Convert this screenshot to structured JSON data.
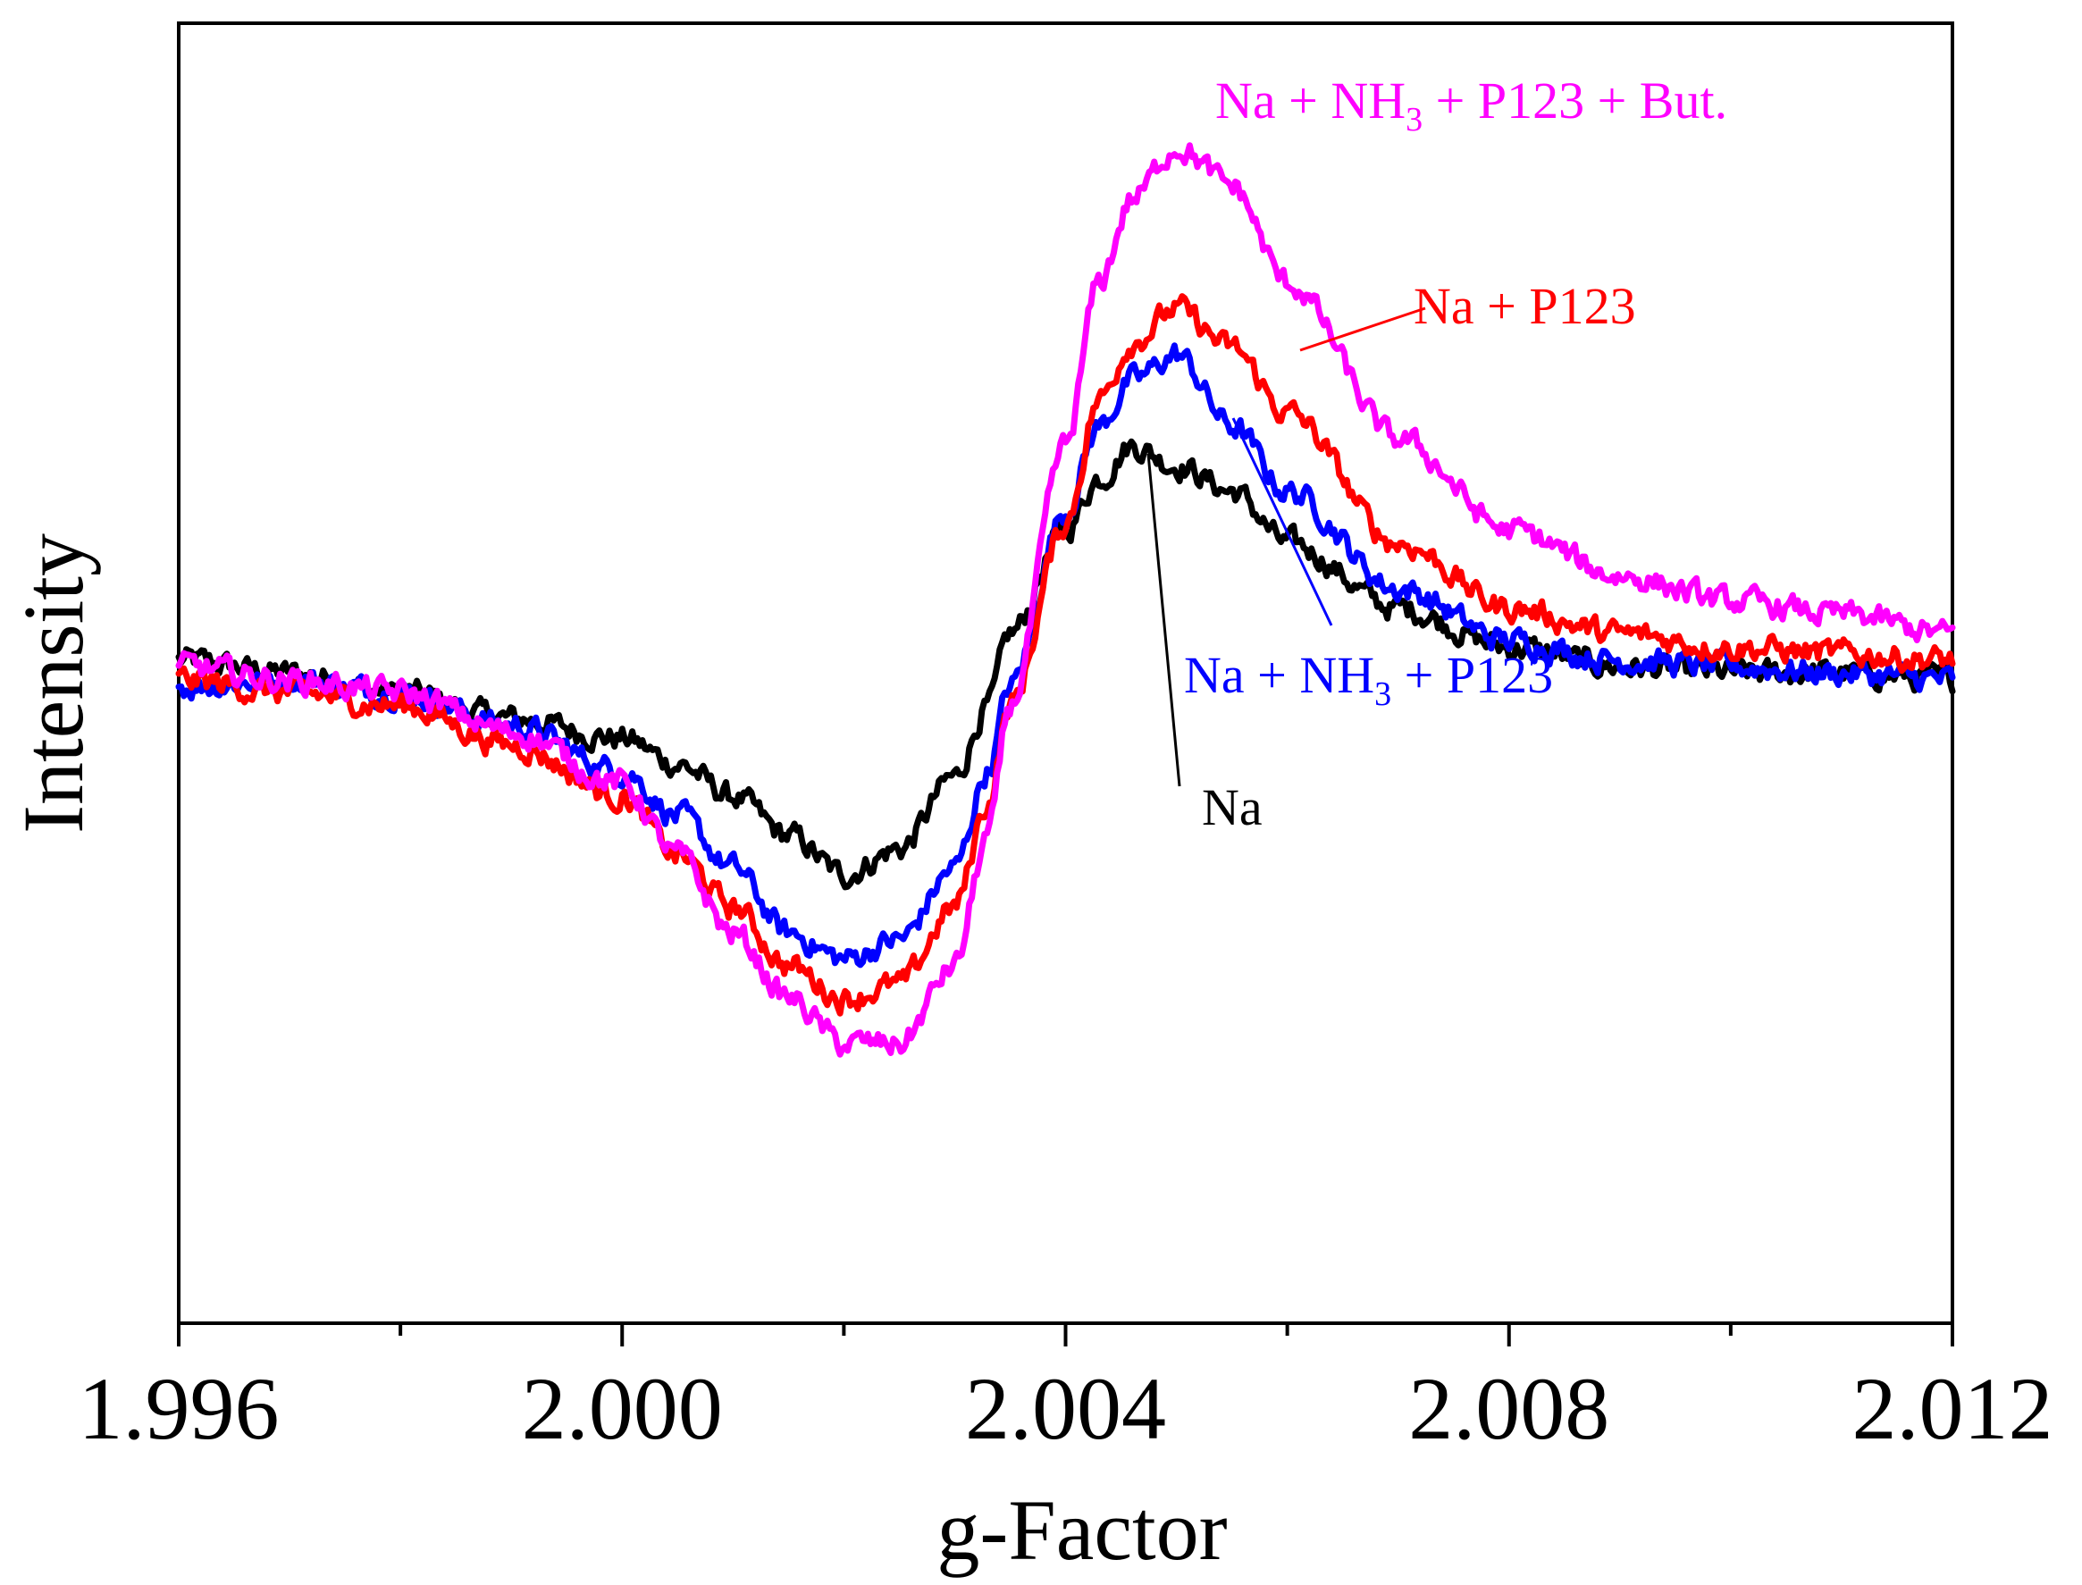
{
  "chart_data": {
    "type": "line",
    "title": "",
    "xlabel": "g-Factor",
    "ylabel": "Intensity",
    "xlim": [
      1.996,
      2.012
    ],
    "ylim": [
      -1.0,
      1.0
    ],
    "x_ticks": [
      "1.996",
      "2.000",
      "2.004",
      "2.008",
      "2.012"
    ],
    "x_tick_values": [
      1.996,
      2.0,
      2.004,
      2.008,
      2.012
    ],
    "x_minor_ticks": [
      1.998,
      2.002,
      2.006,
      2.01
    ],
    "y_ticks_shown": false,
    "grid": false,
    "legend": "direct labels",
    "series": [
      {
        "name": "Na",
        "label_parts": [
          {
            "t": "Na"
          }
        ],
        "color": "#000000",
        "x": [
          1.996,
          1.997,
          1.998,
          1.999,
          2.0,
          2.0005,
          2.001,
          2.0015,
          2.002,
          2.0025,
          2.003,
          2.0033,
          2.0035,
          2.004,
          2.0043,
          2.0046,
          2.005,
          2.0055,
          2.006,
          2.007,
          2.008,
          2.009,
          2.01,
          2.011,
          2.012
        ],
        "y": [
          0.02,
          0.0,
          -0.03,
          -0.07,
          -0.1,
          -0.14,
          -0.19,
          -0.25,
          -0.31,
          -0.27,
          -0.16,
          -0.05,
          0.06,
          0.22,
          0.3,
          0.35,
          0.32,
          0.28,
          0.2,
          0.1,
          0.04,
          0.01,
          0.0,
          0.0,
          -0.01
        ]
      },
      {
        "name": "Na + NH3 + P123",
        "label_parts": [
          {
            "t": "Na + NH"
          },
          {
            "t": "3",
            "sub": true
          },
          {
            "t": " + P123"
          }
        ],
        "color": "#0000ff",
        "x": [
          1.996,
          1.997,
          1.998,
          1.999,
          2.0,
          2.0005,
          2.001,
          2.0015,
          2.002,
          2.0025,
          2.003,
          2.0033,
          2.0035,
          2.004,
          2.0043,
          2.0046,
          2.005,
          2.0055,
          2.006,
          2.007,
          2.008,
          2.009,
          2.01,
          2.011,
          2.012
        ],
        "y": [
          -0.02,
          -0.01,
          -0.03,
          -0.08,
          -0.15,
          -0.22,
          -0.3,
          -0.4,
          -0.44,
          -0.41,
          -0.3,
          -0.15,
          -0.02,
          0.25,
          0.38,
          0.45,
          0.49,
          0.38,
          0.28,
          0.13,
          0.05,
          0.02,
          0.01,
          0.0,
          -0.01
        ]
      },
      {
        "name": "Na + P123",
        "label_parts": [
          {
            "t": "Na + P123"
          }
        ],
        "color": "#ff0000",
        "x": [
          1.996,
          1.997,
          1.998,
          1.999,
          2.0,
          2.0005,
          2.001,
          2.0015,
          2.002,
          2.0025,
          2.003,
          2.0033,
          2.0035,
          2.004,
          2.0043,
          2.0046,
          2.005,
          2.0055,
          2.006,
          2.007,
          2.008,
          2.009,
          2.01,
          2.011,
          2.012
        ],
        "y": [
          -0.01,
          -0.03,
          -0.05,
          -0.11,
          -0.19,
          -0.28,
          -0.36,
          -0.45,
          -0.5,
          -0.48,
          -0.36,
          -0.2,
          -0.05,
          0.23,
          0.42,
          0.51,
          0.56,
          0.5,
          0.4,
          0.2,
          0.1,
          0.06,
          0.04,
          0.03,
          0.02
        ]
      },
      {
        "name": "Na + NH3 + P123 + But.",
        "label_parts": [
          {
            "t": "Na + NH"
          },
          {
            "t": "3",
            "sub": true
          },
          {
            "t": " + P123 + But."
          }
        ],
        "color": "#ff00ff",
        "x": [
          1.996,
          1.997,
          1.998,
          1.999,
          2.0,
          2.0005,
          2.001,
          2.0015,
          2.002,
          2.0025,
          2.003,
          2.0033,
          2.0035,
          2.004,
          2.0043,
          2.0046,
          2.005,
          2.0055,
          2.006,
          2.007,
          2.008,
          2.009,
          2.01,
          2.011,
          2.012
        ],
        "y": [
          0.01,
          -0.01,
          -0.03,
          -0.09,
          -0.17,
          -0.28,
          -0.4,
          -0.5,
          -0.57,
          -0.57,
          -0.45,
          -0.25,
          -0.05,
          0.35,
          0.6,
          0.73,
          0.81,
          0.75,
          0.6,
          0.36,
          0.22,
          0.15,
          0.11,
          0.09,
          0.06
        ]
      }
    ]
  }
}
